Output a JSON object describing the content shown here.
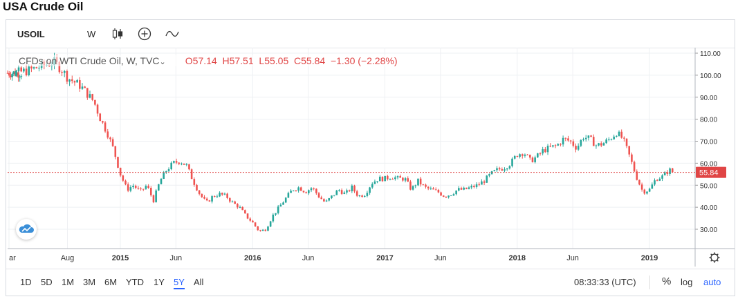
{
  "page_title": "USA Crude Oil",
  "toolbar": {
    "symbol": "USOIL",
    "interval": "W",
    "icons": [
      "candles-icon",
      "add-indicator-icon",
      "compare-icon"
    ]
  },
  "legend": {
    "description": "CFDs on WTI Crude Oil, W, TVC",
    "open": "O57.14",
    "high": "H57.51",
    "low": "L55.05",
    "close": "C55.84",
    "change": "−1.30 (−2.28%)"
  },
  "price_badge": "55.84",
  "range_buttons": [
    "1D",
    "5D",
    "1M",
    "3M",
    "6M",
    "YTD",
    "1Y",
    "5Y",
    "All"
  ],
  "active_range": "5Y",
  "time_text": "08:33:33 (UTC)",
  "scale_buttons": {
    "percent": "%",
    "log": "log",
    "auto": "auto"
  },
  "colors": {
    "up": "#26a69a",
    "down": "#ef5350",
    "last_price": "#e04545",
    "accent": "#2962ff"
  },
  "chart_data": {
    "type": "candlestick",
    "series_name": "CFDs on WTI Crude Oil, W, TVC",
    "ylim": [
      25,
      112
    ],
    "y_ticks": [
      "110.00",
      "100.00",
      "90.00",
      "80.00",
      "70.00",
      "60.00",
      "50.00",
      "40.00",
      "30.00"
    ],
    "x_tick_labels": [
      "ar",
      "Aug",
      "2015",
      "Jun",
      "2016",
      "Jun",
      "2017",
      "Jun",
      "2018",
      "Jun",
      "2019"
    ],
    "grid": true,
    "last_price": 55.84,
    "closes": [
      [
        2014.2,
        101
      ],
      [
        2014.3,
        102
      ],
      [
        2014.4,
        104
      ],
      [
        2014.5,
        106
      ],
      [
        2014.55,
        103
      ],
      [
        2014.6,
        99
      ],
      [
        2014.7,
        95
      ],
      [
        2014.8,
        88
      ],
      [
        2014.85,
        80
      ],
      [
        2014.9,
        74
      ],
      [
        2014.95,
        66
      ],
      [
        2015.0,
        55
      ],
      [
        2015.05,
        48
      ],
      [
        2015.1,
        50
      ],
      [
        2015.15,
        47
      ],
      [
        2015.2,
        50
      ],
      [
        2015.25,
        43
      ],
      [
        2015.3,
        52
      ],
      [
        2015.35,
        57
      ],
      [
        2015.4,
        60
      ],
      [
        2015.45,
        61
      ],
      [
        2015.5,
        59
      ],
      [
        2015.55,
        52
      ],
      [
        2015.6,
        46
      ],
      [
        2015.65,
        42
      ],
      [
        2015.7,
        45
      ],
      [
        2015.75,
        46
      ],
      [
        2015.8,
        45
      ],
      [
        2015.85,
        42
      ],
      [
        2015.9,
        40
      ],
      [
        2015.95,
        36
      ],
      [
        2016.0,
        33
      ],
      [
        2016.05,
        29
      ],
      [
        2016.1,
        30
      ],
      [
        2016.15,
        36
      ],
      [
        2016.2,
        40
      ],
      [
        2016.25,
        44
      ],
      [
        2016.3,
        48
      ],
      [
        2016.35,
        49
      ],
      [
        2016.4,
        47
      ],
      [
        2016.45,
        49
      ],
      [
        2016.5,
        45
      ],
      [
        2016.55,
        42
      ],
      [
        2016.6,
        45
      ],
      [
        2016.65,
        48
      ],
      [
        2016.7,
        46
      ],
      [
        2016.75,
        49
      ],
      [
        2016.8,
        45
      ],
      [
        2016.85,
        46
      ],
      [
        2016.9,
        51
      ],
      [
        2016.95,
        53
      ],
      [
        2017.0,
        53
      ],
      [
        2017.05,
        54
      ],
      [
        2017.1,
        53
      ],
      [
        2017.15,
        53
      ],
      [
        2017.2,
        48
      ],
      [
        2017.25,
        52
      ],
      [
        2017.3,
        49
      ],
      [
        2017.35,
        48
      ],
      [
        2017.4,
        47
      ],
      [
        2017.45,
        45
      ],
      [
        2017.5,
        46
      ],
      [
        2017.55,
        48
      ],
      [
        2017.6,
        48
      ],
      [
        2017.65,
        49
      ],
      [
        2017.7,
        50
      ],
      [
        2017.75,
        52
      ],
      [
        2017.8,
        55
      ],
      [
        2017.85,
        57
      ],
      [
        2017.9,
        58
      ],
      [
        2017.95,
        60
      ],
      [
        2018.0,
        64
      ],
      [
        2018.05,
        65
      ],
      [
        2018.1,
        61
      ],
      [
        2018.15,
        63
      ],
      [
        2018.2,
        66
      ],
      [
        2018.25,
        67
      ],
      [
        2018.3,
        68
      ],
      [
        2018.35,
        71
      ],
      [
        2018.4,
        70
      ],
      [
        2018.45,
        67
      ],
      [
        2018.5,
        72
      ],
      [
        2018.55,
        71
      ],
      [
        2018.6,
        68
      ],
      [
        2018.65,
        69
      ],
      [
        2018.7,
        71
      ],
      [
        2018.75,
        74
      ],
      [
        2018.8,
        71
      ],
      [
        2018.85,
        63
      ],
      [
        2018.9,
        54
      ],
      [
        2018.95,
        47
      ],
      [
        2019.0,
        48
      ],
      [
        2019.05,
        53
      ],
      [
        2019.1,
        54
      ],
      [
        2019.15,
        57
      ],
      [
        2019.18,
        55.84
      ]
    ]
  }
}
